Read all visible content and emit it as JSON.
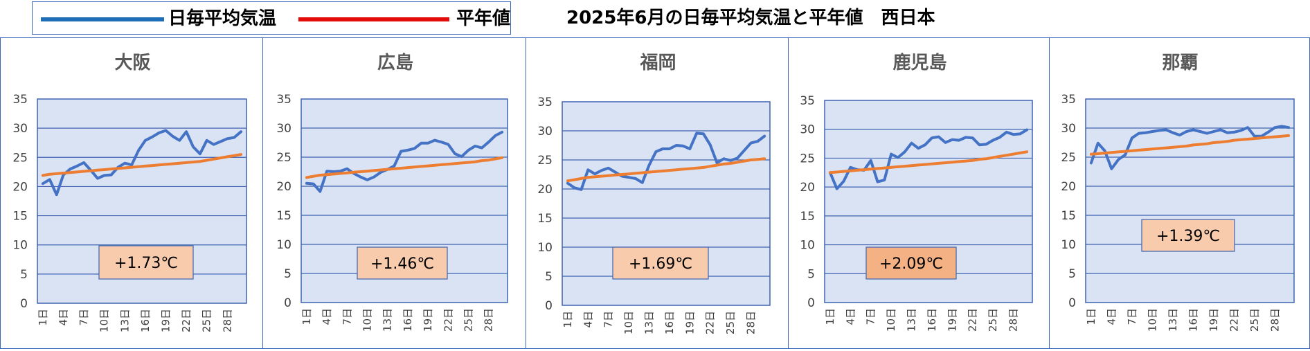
{
  "legend": {
    "series_daily_label": "日毎平均気温",
    "series_normal_label": "平年値",
    "series_daily_color": "#1f6fb8",
    "series_normal_color": "#e40b0b"
  },
  "page_title": "2025年6月の日毎平均気温と平年値　西日本",
  "chart_data": [
    {
      "type": "line",
      "title": "大阪",
      "x": [
        "1日",
        "2日",
        "3日",
        "4日",
        "5日",
        "6日",
        "7日",
        "8日",
        "9日",
        "10日",
        "11日",
        "12日",
        "13日",
        "14日",
        "15日",
        "16日",
        "17日",
        "18日",
        "19日",
        "20日",
        "21日",
        "22日",
        "23日",
        "24日",
        "25日",
        "26日",
        "27日",
        "28日",
        "29日",
        "30日"
      ],
      "xtick_labels": [
        "1日",
        "4日",
        "7日",
        "10日",
        "13日",
        "16日",
        "19日",
        "22日",
        "25日",
        "28日"
      ],
      "ylim": [
        0,
        35
      ],
      "yticks": [
        0,
        5,
        10,
        15,
        20,
        25,
        30,
        35
      ],
      "grid": true,
      "series": [
        {
          "name": "日毎平均気温",
          "color": "#4472c4",
          "values": [
            20.5,
            21.2,
            18.6,
            22.0,
            23.0,
            23.5,
            24.1,
            22.8,
            21.4,
            21.9,
            22.0,
            23.3,
            24.0,
            23.7,
            26.2,
            27.9,
            28.5,
            29.2,
            29.6,
            28.6,
            27.9,
            29.4,
            26.8,
            25.6,
            27.9,
            27.2,
            27.7,
            28.2,
            28.4,
            29.4
          ]
        },
        {
          "name": "平年値",
          "color": "#ed7d31",
          "values": [
            21.9,
            22.1,
            22.2,
            22.3,
            22.4,
            22.5,
            22.6,
            22.7,
            22.8,
            22.9,
            23.0,
            23.1,
            23.2,
            23.3,
            23.4,
            23.5,
            23.6,
            23.7,
            23.8,
            23.9,
            24.0,
            24.1,
            24.2,
            24.3,
            24.5,
            24.7,
            24.9,
            25.1,
            25.3,
            25.5
          ]
        }
      ],
      "annotation": "+1.73℃",
      "annotation_fill": "#f8cbad"
    },
    {
      "type": "line",
      "title": "広島",
      "x": [
        "1日",
        "2日",
        "3日",
        "4日",
        "5日",
        "6日",
        "7日",
        "8日",
        "9日",
        "10日",
        "11日",
        "12日",
        "13日",
        "14日",
        "15日",
        "16日",
        "17日",
        "18日",
        "19日",
        "20日",
        "21日",
        "22日",
        "23日",
        "24日",
        "25日",
        "26日",
        "27日",
        "28日",
        "29日",
        "30日"
      ],
      "xtick_labels": [
        "1日",
        "4日",
        "7日",
        "10日",
        "13日",
        "16日",
        "19日",
        "22日",
        "25日",
        "28日"
      ],
      "ylim": [
        0,
        35
      ],
      "yticks": [
        0,
        5,
        10,
        15,
        20,
        25,
        30,
        35
      ],
      "grid": true,
      "series": [
        {
          "name": "日毎平均気温",
          "color": "#4472c4",
          "values": [
            20.5,
            20.4,
            19.1,
            22.6,
            22.5,
            22.6,
            23.0,
            22.2,
            21.6,
            21.1,
            21.6,
            22.4,
            22.9,
            23.5,
            26.0,
            26.2,
            26.5,
            27.4,
            27.4,
            27.9,
            27.6,
            27.2,
            25.6,
            25.1,
            26.2,
            26.9,
            26.6,
            27.6,
            28.7,
            29.3
          ]
        },
        {
          "name": "平年値",
          "color": "#ed7d31",
          "values": [
            21.5,
            21.7,
            21.9,
            22.0,
            22.1,
            22.2,
            22.3,
            22.4,
            22.5,
            22.6,
            22.7,
            22.8,
            22.9,
            23.0,
            23.1,
            23.2,
            23.3,
            23.4,
            23.5,
            23.6,
            23.7,
            23.8,
            23.9,
            24.0,
            24.1,
            24.2,
            24.4,
            24.5,
            24.7,
            24.9
          ]
        }
      ],
      "annotation": "+1.46℃",
      "annotation_fill": "#f8cbad"
    },
    {
      "type": "line",
      "title": "福岡",
      "x": [
        "1日",
        "2日",
        "3日",
        "4日",
        "5日",
        "6日",
        "7日",
        "8日",
        "9日",
        "10日",
        "11日",
        "12日",
        "13日",
        "14日",
        "15日",
        "16日",
        "17日",
        "18日",
        "19日",
        "20日",
        "21日",
        "22日",
        "23日",
        "24日",
        "25日",
        "26日",
        "27日",
        "28日",
        "29日",
        "30日"
      ],
      "xtick_labels": [
        "1日",
        "4日",
        "7日",
        "10日",
        "13日",
        "16日",
        "19日",
        "22日",
        "25日",
        "28日"
      ],
      "ylim": [
        0,
        35
      ],
      "yticks": [
        0,
        5,
        10,
        15,
        20,
        25,
        30,
        35
      ],
      "grid": true,
      "series": [
        {
          "name": "日毎平均気温",
          "color": "#4472c4",
          "values": [
            21.0,
            20.2,
            19.9,
            23.3,
            22.6,
            23.2,
            23.6,
            22.9,
            22.2,
            22.0,
            21.8,
            21.1,
            24.1,
            26.4,
            26.9,
            26.9,
            27.5,
            27.4,
            26.9,
            29.6,
            29.5,
            27.6,
            24.5,
            25.2,
            24.9,
            25.3,
            26.6,
            27.9,
            28.2,
            29.1
          ]
        },
        {
          "name": "平年値",
          "color": "#ed7d31",
          "values": [
            21.4,
            21.6,
            21.8,
            22.0,
            22.1,
            22.2,
            22.3,
            22.4,
            22.5,
            22.6,
            22.7,
            22.8,
            22.9,
            23.0,
            23.1,
            23.2,
            23.3,
            23.4,
            23.5,
            23.6,
            23.7,
            23.9,
            24.1,
            24.3,
            24.4,
            24.6,
            24.8,
            25.0,
            25.1,
            25.2
          ]
        }
      ],
      "annotation": "+1.69℃",
      "annotation_fill": "#f8cbad"
    },
    {
      "type": "line",
      "title": "鹿児島",
      "x": [
        "1日",
        "2日",
        "3日",
        "4日",
        "5日",
        "6日",
        "7日",
        "8日",
        "9日",
        "10日",
        "11日",
        "12日",
        "13日",
        "14日",
        "15日",
        "16日",
        "17日",
        "18日",
        "19日",
        "20日",
        "21日",
        "22日",
        "23日",
        "24日",
        "25日",
        "26日",
        "27日",
        "28日",
        "29日",
        "30日"
      ],
      "xtick_labels": [
        "1日",
        "4日",
        "7日",
        "10日",
        "13日",
        "16日",
        "19日",
        "22日",
        "25日",
        "28日"
      ],
      "ylim": [
        0,
        35
      ],
      "yticks": [
        0,
        5,
        10,
        15,
        20,
        25,
        30,
        35
      ],
      "grid": true,
      "series": [
        {
          "name": "日毎平均気温",
          "color": "#4472c4",
          "values": [
            22.5,
            19.7,
            21.0,
            23.4,
            23.0,
            22.9,
            24.6,
            20.9,
            21.2,
            25.7,
            25.1,
            26.1,
            27.6,
            26.7,
            27.3,
            28.5,
            28.7,
            27.7,
            28.2,
            28.1,
            28.6,
            28.5,
            27.3,
            27.4,
            28.1,
            28.6,
            29.5,
            29.1,
            29.2,
            29.9
          ]
        },
        {
          "name": "平年値",
          "color": "#ed7d31",
          "values": [
            22.5,
            22.6,
            22.7,
            22.8,
            22.9,
            23.0,
            23.1,
            23.2,
            23.3,
            23.4,
            23.5,
            23.6,
            23.7,
            23.8,
            23.9,
            24.0,
            24.1,
            24.2,
            24.3,
            24.4,
            24.5,
            24.6,
            24.8,
            24.9,
            25.1,
            25.3,
            25.5,
            25.7,
            25.9,
            26.1
          ]
        }
      ],
      "annotation": "+2.09℃",
      "annotation_fill": "#f4b183"
    },
    {
      "type": "line",
      "title": "那覇",
      "x": [
        "1日",
        "2日",
        "3日",
        "4日",
        "5日",
        "6日",
        "7日",
        "8日",
        "9日",
        "10日",
        "11日",
        "12日",
        "13日",
        "14日",
        "15日",
        "16日",
        "17日",
        "18日",
        "19日",
        "20日",
        "21日",
        "22日",
        "23日",
        "24日",
        "25日",
        "26日",
        "27日",
        "28日",
        "29日",
        "30日"
      ],
      "xtick_labels": [
        "1日",
        "4日",
        "7日",
        "10日",
        "13日",
        "16日",
        "19日",
        "22日",
        "25日",
        "28日"
      ],
      "ylim": [
        0,
        35
      ],
      "yticks": [
        0,
        5,
        10,
        15,
        20,
        25,
        30,
        35
      ],
      "grid": true,
      "series": [
        {
          "name": "日毎平均気温",
          "color": "#4472c4",
          "values": [
            24.0,
            27.4,
            26.1,
            23.0,
            24.6,
            25.4,
            28.3,
            29.1,
            29.2,
            29.4,
            29.6,
            29.7,
            29.2,
            28.8,
            29.4,
            29.7,
            29.4,
            29.1,
            29.4,
            29.7,
            29.2,
            29.3,
            29.6,
            30.1,
            28.6,
            28.6,
            29.3,
            30.1,
            30.3,
            30.1
          ]
        },
        {
          "name": "平年値",
          "color": "#ed7d31",
          "values": [
            25.5,
            25.6,
            25.7,
            25.8,
            25.9,
            26.0,
            26.1,
            26.2,
            26.3,
            26.4,
            26.5,
            26.6,
            26.7,
            26.8,
            26.9,
            27.1,
            27.2,
            27.3,
            27.5,
            27.6,
            27.7,
            27.9,
            28.0,
            28.1,
            28.2,
            28.3,
            28.4,
            28.5,
            28.6,
            28.7
          ]
        }
      ],
      "annotation": "+1.39℃",
      "annotation_fill": "#f8cbad"
    }
  ]
}
